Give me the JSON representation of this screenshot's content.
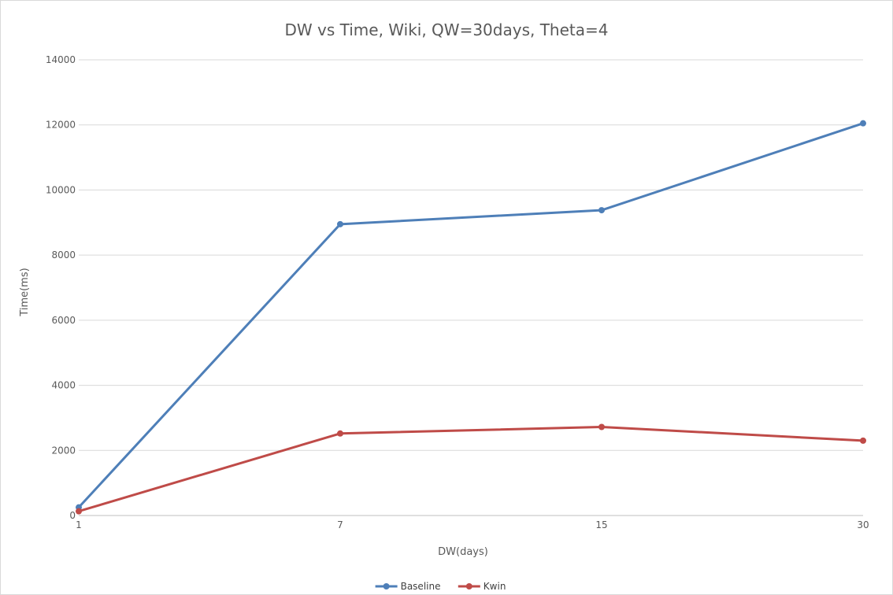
{
  "chart_data": {
    "type": "line",
    "title": "DW vs Time, Wiki, QW=30days, Theta=4",
    "xlabel": "DW(days)",
    "ylabel": "Time(ms)",
    "categories": [
      "1",
      "7",
      "15",
      "30"
    ],
    "ylim": [
      0,
      14000
    ],
    "yticks": [
      0,
      2000,
      4000,
      6000,
      8000,
      10000,
      12000,
      14000
    ],
    "grid": true,
    "legend_position": "bottom",
    "series": [
      {
        "name": "Baseline",
        "color": "#4e7fb8",
        "values": [
          250,
          8950,
          9380,
          12050
        ]
      },
      {
        "name": "Kwin",
        "color": "#bf4b48",
        "values": [
          130,
          2520,
          2720,
          2300
        ]
      }
    ]
  }
}
